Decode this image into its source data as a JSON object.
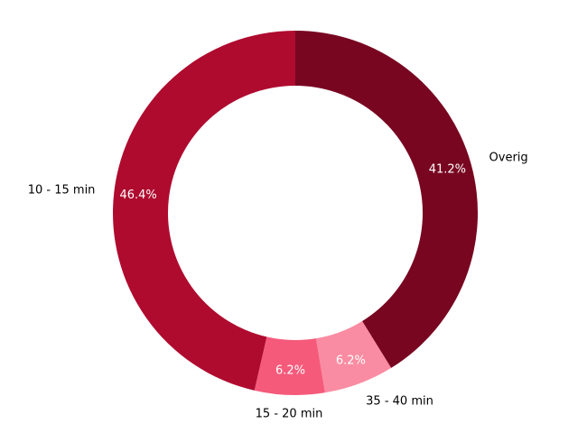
{
  "chart_data": {
    "type": "pie",
    "donut": true,
    "start_angle_deg": 90,
    "direction": "clockwise",
    "categories": [
      "Overig",
      "35 - 40 min",
      "15 - 20 min",
      "10 - 15 min"
    ],
    "values": [
      41.2,
      6.2,
      6.2,
      46.4
    ],
    "value_labels": [
      "41.2%",
      "6.2%",
      "6.2%",
      "46.4%"
    ],
    "colors": [
      "#780621",
      "#f98ca2",
      "#f55a7b",
      "#af0b2f"
    ],
    "legend": "none",
    "title": ""
  }
}
